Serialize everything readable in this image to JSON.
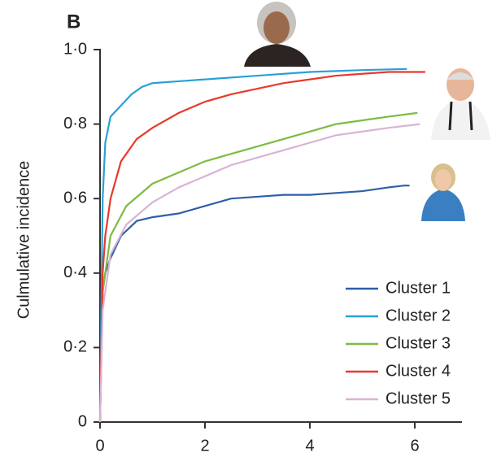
{
  "chart_data": {
    "type": "line",
    "panel_label": "B",
    "y_label": "Culmulative incidence",
    "xlim": [
      0,
      6.9
    ],
    "ylim": [
      0,
      1
    ],
    "xticks": [
      0,
      2,
      4,
      6
    ],
    "yticks": [
      {
        "value": 0,
        "label": "0"
      },
      {
        "value": 0.2,
        "label": "0·2"
      },
      {
        "value": 0.4,
        "label": "0·4"
      },
      {
        "value": 0.6,
        "label": "0·6"
      },
      {
        "value": 0.8,
        "label": "0·8"
      },
      {
        "value": 1,
        "label": "1·0"
      }
    ],
    "legend": "lower right",
    "series": [
      {
        "name": "Cluster 1",
        "color": "#2e5fa8",
        "x": [
          0,
          0.05,
          0.1,
          0.2,
          0.4,
          0.7,
          1,
          1.5,
          2,
          2.5,
          3,
          3.5,
          4,
          4.5,
          5,
          5.5,
          5.8,
          5.9
        ],
        "values": [
          0,
          0.35,
          0.4,
          0.44,
          0.5,
          0.54,
          0.55,
          0.56,
          0.58,
          0.6,
          0.605,
          0.61,
          0.61,
          0.615,
          0.62,
          0.63,
          0.635,
          0.635
        ]
      },
      {
        "name": "Cluster 2",
        "color": "#2aa0d6",
        "x": [
          0,
          0.05,
          0.1,
          0.2,
          0.4,
          0.6,
          0.8,
          1,
          1.5,
          2,
          3,
          4,
          5,
          5.85
        ],
        "values": [
          0,
          0.6,
          0.75,
          0.82,
          0.85,
          0.88,
          0.9,
          0.91,
          0.915,
          0.92,
          0.93,
          0.94,
          0.945,
          0.948
        ]
      },
      {
        "name": "Cluster 3",
        "color": "#7dbb42",
        "x": [
          0,
          0.05,
          0.2,
          0.5,
          1,
          1.5,
          2,
          2.5,
          3,
          3.5,
          4,
          4.5,
          5,
          5.5,
          6.05
        ],
        "values": [
          0,
          0.35,
          0.5,
          0.58,
          0.64,
          0.67,
          0.7,
          0.72,
          0.74,
          0.76,
          0.78,
          0.8,
          0.81,
          0.82,
          0.83
        ]
      },
      {
        "name": "Cluster 4",
        "color": "#e8392b",
        "x": [
          0,
          0.05,
          0.1,
          0.2,
          0.4,
          0.7,
          1,
          1.5,
          2,
          2.5,
          3,
          3.5,
          4,
          4.5,
          5,
          5.5,
          6.2
        ],
        "values": [
          0,
          0.4,
          0.5,
          0.6,
          0.7,
          0.76,
          0.79,
          0.83,
          0.86,
          0.88,
          0.895,
          0.91,
          0.92,
          0.93,
          0.935,
          0.94,
          0.94
        ]
      },
      {
        "name": "Cluster 5",
        "color": "#d9b3d6",
        "x": [
          0,
          0.05,
          0.2,
          0.5,
          1,
          1.5,
          2,
          2.5,
          3,
          3.5,
          4,
          4.5,
          5,
          5.5,
          6.1
        ],
        "values": [
          0,
          0.3,
          0.45,
          0.53,
          0.59,
          0.63,
          0.66,
          0.69,
          0.71,
          0.73,
          0.75,
          0.77,
          0.78,
          0.79,
          0.8
        ]
      }
    ]
  }
}
